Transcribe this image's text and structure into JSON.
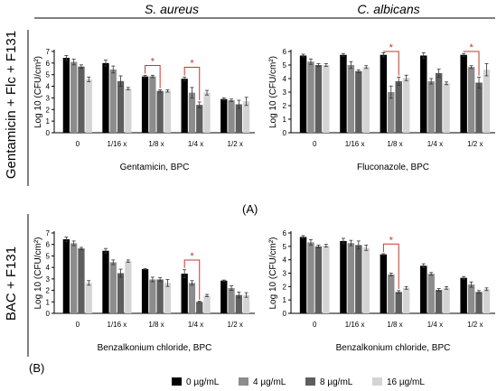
{
  "headers": {
    "left": "S. aureus",
    "right": "C. albicans"
  },
  "row_labels": {
    "top": "Gentamicin + Flc + F131",
    "bottom": "BAC + F131"
  },
  "panel_labels": {
    "a": "(A)",
    "b": "(B)"
  },
  "legend": {
    "items": [
      {
        "label": "0 µg/mL",
        "color": "#000000"
      },
      {
        "label": "4 µg/mL",
        "color": "#8c8c8c"
      },
      {
        "label": "8 µg/mL",
        "color": "#5e5e5e"
      },
      {
        "label": "16 µg/mL",
        "color": "#d4d4d4"
      }
    ]
  },
  "colors": {
    "sig_line": "#c0392b"
  },
  "chart_data": [
    {
      "type": "bar",
      "ylabel": "Log 10 (CFU/cm²)",
      "xlabel": "Gentamicin, BPC",
      "categories": [
        "0",
        "1/16 x",
        "1/8 x",
        "1/4 x",
        "1/2 x"
      ],
      "ylim": [
        0,
        7
      ],
      "yticks": [
        0,
        1,
        2,
        3,
        4,
        5,
        6,
        7
      ],
      "series": [
        {
          "name": "0 µg/mL",
          "values": [
            6.45,
            6.0,
            4.85,
            4.65,
            2.9
          ],
          "err": [
            0.2,
            0.25,
            0.1,
            0.15,
            0.1
          ]
        },
        {
          "name": "4 µg/mL",
          "values": [
            6.1,
            5.45,
            4.85,
            3.45,
            2.8
          ],
          "err": [
            0.25,
            0.3,
            0.1,
            0.45,
            0.1
          ]
        },
        {
          "name": "8 µg/mL",
          "values": [
            5.7,
            4.45,
            3.6,
            2.4,
            2.45
          ],
          "err": [
            0.15,
            0.45,
            0.1,
            0.25,
            0.35
          ]
        },
        {
          "name": "16 µg/mL",
          "values": [
            4.6,
            3.8,
            3.6,
            3.45,
            2.7
          ],
          "err": [
            0.2,
            0.1,
            0.1,
            0.2,
            0.35
          ]
        }
      ],
      "significance": [
        {
          "category": 2,
          "from": 0,
          "to": 2,
          "label": "*"
        },
        {
          "category": 3,
          "from": 0,
          "to": 2,
          "label": "*"
        }
      ]
    },
    {
      "type": "bar",
      "ylabel": "Log 10 (CFU/cm²)",
      "xlabel": "Fluconazole, BPC",
      "categories": [
        "0",
        "1/16 x",
        "1/8 x",
        "1/4 x",
        "1/2 x"
      ],
      "ylim": [
        0,
        6
      ],
      "yticks": [
        0,
        1,
        2,
        3,
        4,
        5,
        6
      ],
      "series": [
        {
          "name": "0 µg/mL",
          "values": [
            5.7,
            5.75,
            5.75,
            5.7,
            5.75
          ],
          "err": [
            0.1,
            0.1,
            0.15,
            0.2,
            0.1
          ]
        },
        {
          "name": "4 µg/mL",
          "values": [
            5.25,
            5.0,
            3.0,
            3.8,
            4.85
          ],
          "err": [
            0.2,
            0.25,
            0.45,
            0.2,
            0.1
          ]
        },
        {
          "name": "8 µg/mL",
          "values": [
            5.0,
            4.55,
            3.8,
            4.4,
            3.7
          ],
          "err": [
            0.1,
            0.1,
            0.3,
            0.3,
            0.4
          ]
        },
        {
          "name": "16 µg/mL",
          "values": [
            5.0,
            4.85,
            4.05,
            3.65,
            4.65
          ],
          "err": [
            0.1,
            0.1,
            0.2,
            0.1,
            0.45
          ]
        }
      ],
      "significance": [
        {
          "category": 2,
          "from": 0,
          "to": 2,
          "label": "*"
        },
        {
          "category": 4,
          "from": 0,
          "to": 2,
          "label": "*"
        }
      ]
    },
    {
      "type": "bar",
      "ylabel": "Log 10 (CFU/cm²)",
      "xlabel": "Benzalkonium chloride, BPC",
      "categories": [
        "0",
        "1/16 x",
        "1/8 x",
        "1/4 x",
        "1/2 x"
      ],
      "ylim": [
        0,
        7
      ],
      "yticks": [
        0,
        1,
        2,
        3,
        4,
        5,
        6,
        7
      ],
      "series": [
        {
          "name": "0 µg/mL",
          "values": [
            6.45,
            5.45,
            3.85,
            3.45,
            2.85
          ],
          "err": [
            0.2,
            0.2,
            0.05,
            0.35,
            0.05
          ]
        },
        {
          "name": "4 µg/mL",
          "values": [
            6.1,
            4.45,
            2.95,
            2.65,
            2.2
          ],
          "err": [
            0.2,
            0.2,
            0.2,
            0.2,
            0.2
          ]
        },
        {
          "name": "8 µg/mL",
          "values": [
            5.65,
            3.5,
            2.95,
            1.0,
            1.6
          ],
          "err": [
            0.1,
            0.35,
            0.15,
            0.05,
            0.25
          ]
        },
        {
          "name": "16 µg/mL",
          "values": [
            2.65,
            4.55,
            2.65,
            1.55,
            1.6
          ],
          "err": [
            0.2,
            0.1,
            0.3,
            0.1,
            0.2
          ]
        }
      ],
      "significance": [
        {
          "category": 3,
          "from": 0,
          "to": 2,
          "label": "*"
        }
      ]
    },
    {
      "type": "bar",
      "ylabel": "Log 10 (CFU/cm²)",
      "xlabel": "Benzalkonium chloride, BPC",
      "categories": [
        "0",
        "1/16 x",
        "1/8 x",
        "1/4 x",
        "1/2 x"
      ],
      "ylim": [
        0,
        6
      ],
      "yticks": [
        0,
        1,
        2,
        3,
        4,
        5,
        6
      ],
      "series": [
        {
          "name": "0 µg/mL",
          "values": [
            5.7,
            5.4,
            4.4,
            3.55,
            2.65
          ],
          "err": [
            0.1,
            0.2,
            0.05,
            0.15,
            0.1
          ]
        },
        {
          "name": "4 µg/mL",
          "values": [
            5.3,
            5.25,
            2.9,
            2.95,
            2.15
          ],
          "err": [
            0.2,
            0.2,
            0.1,
            0.1,
            0.2
          ]
        },
        {
          "name": "8 µg/mL",
          "values": [
            5.0,
            5.1,
            1.6,
            1.75,
            1.6
          ],
          "err": [
            0.1,
            0.3,
            0.1,
            0.1,
            0.1
          ]
        },
        {
          "name": "16 µg/mL",
          "values": [
            5.05,
            4.9,
            1.9,
            1.9,
            1.8
          ],
          "err": [
            0.1,
            0.2,
            0.1,
            0.1,
            0.1
          ]
        }
      ],
      "significance": [
        {
          "category": 2,
          "from": 0,
          "to": 2,
          "label": "*"
        }
      ]
    }
  ]
}
